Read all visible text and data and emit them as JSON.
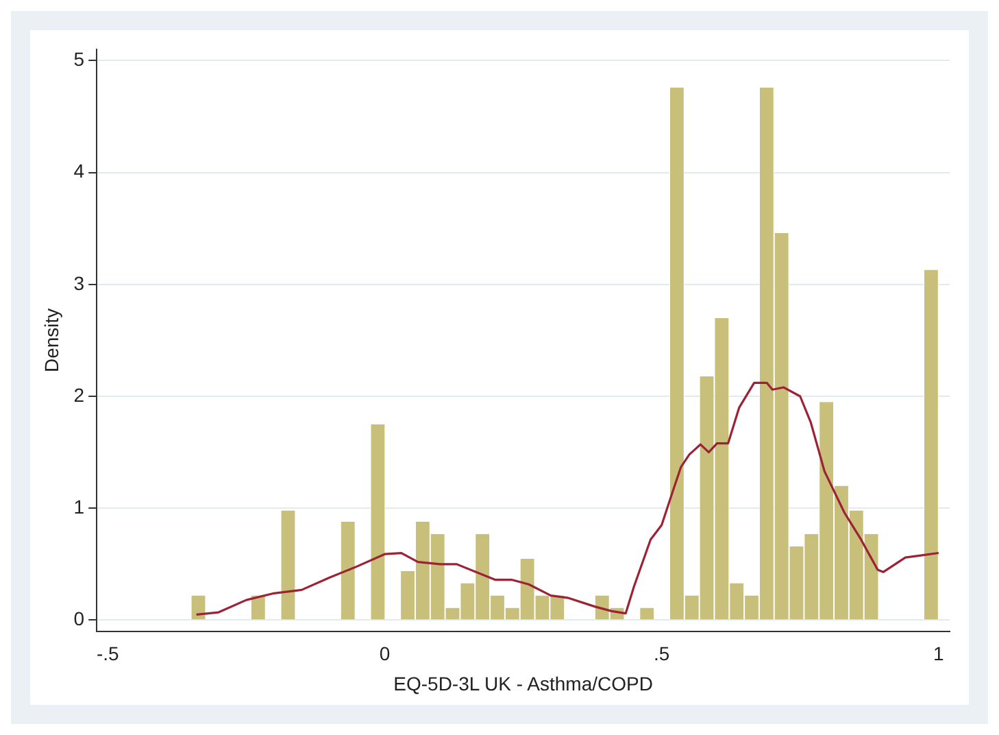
{
  "chart_data": {
    "type": "histogram",
    "xlabel": "EQ-5D-3L UK - Asthma/COPD",
    "ylabel": "Density",
    "bins": [
      -0.35,
      -0.323,
      -0.296,
      -0.269,
      -0.242,
      -0.215,
      -0.188,
      -0.161,
      -0.134,
      -0.107,
      -0.08,
      -0.053,
      -0.026,
      0.001,
      0.028,
      0.055,
      0.082,
      0.109,
      0.136,
      0.163,
      0.19,
      0.217,
      0.244,
      0.271,
      0.298,
      0.325,
      0.352,
      0.379,
      0.406,
      0.433,
      0.46,
      0.487,
      0.514,
      0.541,
      0.568,
      0.595,
      0.622,
      0.649,
      0.676,
      0.703,
      0.73,
      0.757,
      0.784,
      0.811,
      0.838,
      0.865,
      0.892,
      0.919,
      0.946,
      0.973,
      1.0
    ],
    "values": [
      0.22,
      0,
      0,
      0,
      0.22,
      0,
      0.98,
      0,
      0,
      0,
      0.88,
      0,
      1.75,
      0,
      0.44,
      0.88,
      0.77,
      0.11,
      0.33,
      0.77,
      0.22,
      0.11,
      0.55,
      0.22,
      0.22,
      0,
      0,
      0.22,
      0.11,
      0,
      0.11,
      0,
      4.76,
      0.22,
      2.18,
      2.7,
      0.33,
      0.22,
      4.76,
      3.46,
      0.66,
      0.77,
      1.95,
      1.2,
      0.98,
      0.77,
      0,
      0,
      0,
      3.13
    ],
    "color": "#c8c07a",
    "series": [
      {
        "type": "line",
        "color": "#9b2335",
        "x": [
          -0.34,
          -0.3,
          -0.25,
          -0.2,
          -0.15,
          -0.1,
          -0.05,
          0,
          0.03,
          0.06,
          0.1,
          0.13,
          0.17,
          0.2,
          0.23,
          0.26,
          0.3,
          0.33,
          0.38,
          0.41,
          0.435,
          0.45,
          0.48,
          0.5,
          0.52,
          0.535,
          0.55,
          0.57,
          0.585,
          0.6,
          0.62,
          0.64,
          0.667,
          0.69,
          0.7,
          0.72,
          0.75,
          0.769,
          0.794,
          0.83,
          0.86,
          0.89,
          0.9,
          0.94,
          0.97,
          1.0
        ],
        "values": [
          0.05,
          0.07,
          0.18,
          0.24,
          0.27,
          0.38,
          0.48,
          0.59,
          0.6,
          0.52,
          0.5,
          0.5,
          0.42,
          0.36,
          0.36,
          0.32,
          0.22,
          0.2,
          0.12,
          0.08,
          0.06,
          0.3,
          0.72,
          0.85,
          1.15,
          1.37,
          1.48,
          1.57,
          1.5,
          1.58,
          1.58,
          1.9,
          2.12,
          2.12,
          2.06,
          2.08,
          2.0,
          1.77,
          1.33,
          0.96,
          0.72,
          0.45,
          0.43,
          0.56,
          0.58,
          0.6
        ]
      }
    ],
    "xlim": [
      -0.52,
      1.02
    ],
    "xticks": [
      {
        "value": -0.5,
        "label": "-.5"
      },
      0,
      {
        "value": 0.5,
        "label": ".5"
      },
      1
    ],
    "ylim": [
      -0.1,
      5.1
    ],
    "yticks": [
      0,
      1,
      2,
      3,
      4,
      5
    ],
    "grid": "y",
    "legend": false
  }
}
